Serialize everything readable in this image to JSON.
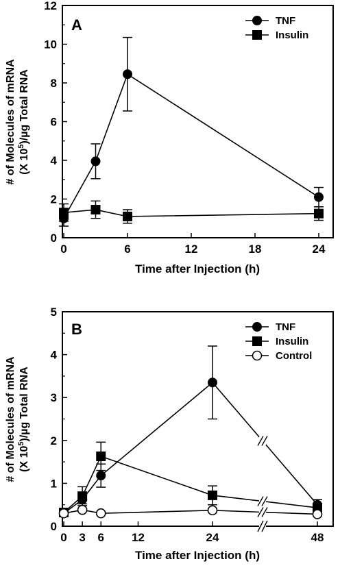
{
  "chart_data": [
    {
      "panel_label": "A",
      "type": "line",
      "xlabel": "Time after Injection (h)",
      "ylabel_line1": "# of Molecules of mRNA",
      "ylabel_line2": "(X 10",
      "ylabel_sup": "5",
      "ylabel_line2_tail": ")/µg Total RNA",
      "xlim": [
        0,
        24
      ],
      "ylim": [
        0,
        12
      ],
      "xticks": [
        0,
        6,
        12,
        18,
        24
      ],
      "yticks": [
        0,
        2,
        4,
        6,
        8,
        10,
        12
      ],
      "legend_position": "top-right",
      "series": [
        {
          "name": "TNF",
          "marker": "filled-circle",
          "x": [
            0,
            3,
            6,
            24
          ],
          "y": [
            1.0,
            3.95,
            8.45,
            2.1
          ],
          "err": [
            0.4,
            0.9,
            1.9,
            0.5
          ]
        },
        {
          "name": "Insulin",
          "marker": "filled-square",
          "x": [
            0,
            3,
            6,
            24
          ],
          "y": [
            1.3,
            1.45,
            1.1,
            1.25
          ],
          "err": [
            0.45,
            0.45,
            0.35,
            0.35
          ]
        }
      ]
    },
    {
      "panel_label": "B",
      "type": "line",
      "xlabel": "Time after Injection (h)",
      "ylabel_line1": "# of Molecules of mRNA",
      "ylabel_line2": "(X 10",
      "ylabel_sup": "5",
      "ylabel_line2_tail": ")/µg Total RNA",
      "xlim": [
        0,
        48
      ],
      "ylim": [
        0,
        5
      ],
      "xticks": [
        0,
        3,
        6,
        12,
        24,
        48
      ],
      "yticks": [
        0,
        1,
        2,
        3,
        4,
        5
      ],
      "axis_break": "between 24 and 48",
      "legend_position": "top-right",
      "series": [
        {
          "name": "TNF",
          "marker": "filled-circle",
          "x": [
            0,
            3,
            6,
            24,
            48
          ],
          "y": [
            0.3,
            0.62,
            1.18,
            3.35,
            0.5
          ],
          "err": [
            0.05,
            0.1,
            0.27,
            0.85,
            0.12
          ]
        },
        {
          "name": "Insulin",
          "marker": "filled-square",
          "x": [
            0,
            3,
            6,
            24,
            48
          ],
          "y": [
            0.32,
            0.7,
            1.63,
            0.72,
            0.43
          ],
          "err": [
            0.05,
            0.22,
            0.33,
            0.22,
            0.08
          ]
        },
        {
          "name": "Control",
          "marker": "open-circle",
          "x": [
            0,
            3,
            6,
            24,
            48
          ],
          "y": [
            0.3,
            0.38,
            0.3,
            0.37,
            0.28
          ],
          "err": [
            0.03,
            0.03,
            0.03,
            0.03,
            0.03
          ]
        }
      ]
    }
  ]
}
